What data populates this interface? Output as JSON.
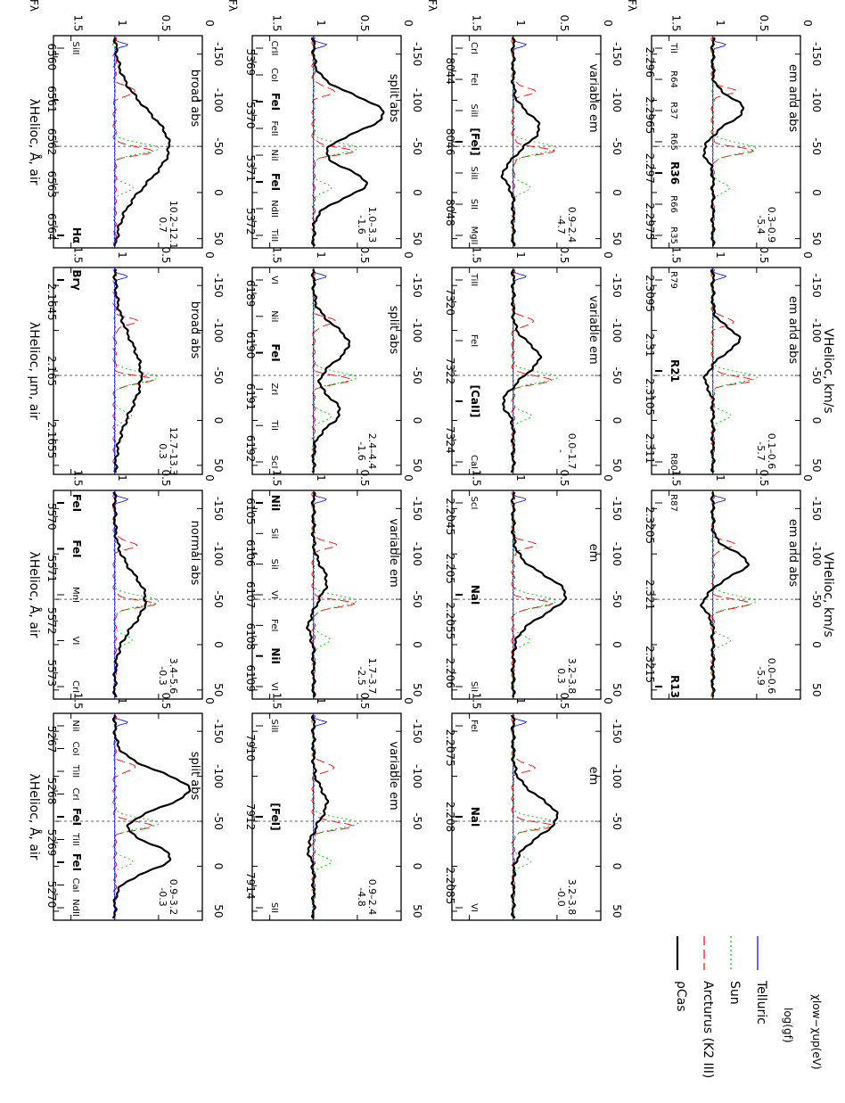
{
  "chart_data": [
    {
      "type": "line",
      "panel": 1,
      "ylabel": "Fλ",
      "top_label": "λHelioc, Å, air",
      "x_ticks": [
        "6560",
        "6561",
        "6562",
        "6563",
        "6564"
      ],
      "line_marks": [
        "SiII",
        "Hα"
      ],
      "ref_line": "Hα",
      "type_label": "broad abs",
      "note1": "0.7",
      "note2": "10.2–12.1",
      "depth": 0.62,
      "shape": "broad"
    },
    {
      "type": "line",
      "panel": 2,
      "ylabel": "Fλ",
      "top_label": "",
      "x_ticks": [
        "5369",
        "5370",
        "5371",
        "5372"
      ],
      "line_marks": [
        "CrII",
        "CoI",
        "FeI",
        "FeII",
        "NiI",
        "FeI",
        "NdII",
        "TiII"
      ],
      "ref_line": "FeI",
      "type_label": "split abs",
      "note1": "-1.6",
      "note2": "1.0–3.3",
      "depth": 0.8,
      "shape": "split"
    },
    {
      "type": "line",
      "panel": 3,
      "ylabel": "Fλ",
      "top_label": "",
      "x_ticks": [
        "8044",
        "8046",
        "8048"
      ],
      "line_marks": [
        "CrI",
        "FeI",
        "SiII",
        "[FeI]",
        "SiII",
        "SII",
        "MgII"
      ],
      "ref_line": "[FeI]",
      "type_label": "variable em",
      "note1": "-4.7",
      "note2": "0.9–2.4",
      "depth": 0.3,
      "shape": "variable"
    },
    {
      "type": "line",
      "panel": 4,
      "ylabel": "Fλ",
      "top_label": "",
      "x_ticks": [
        "2.296",
        "2.2965",
        "2.297",
        "2.2975"
      ],
      "line_marks": [
        "TiI",
        "R64",
        "R37",
        "R65",
        "R36",
        "R66",
        "R35"
      ],
      "ref_line": "R36",
      "type_label": "em and abs",
      "note1": "-5.4",
      "note2": "0.3–0.9",
      "depth": 0.35,
      "shape": "emabs"
    },
    {
      "type": "line",
      "panel": 5,
      "ylabel": "",
      "top_label": "λHelioc, μm, air",
      "x_ticks": [
        "2.1645",
        "2.165",
        "2.1655"
      ],
      "line_marks": [
        "Brγ"
      ],
      "ref_line": "Brγ",
      "type_label": "broad abs",
      "note1": "0.3",
      "note2": "12.7–13.3",
      "depth": 0.3,
      "shape": "broad"
    },
    {
      "type": "line",
      "panel": 6,
      "ylabel": "",
      "top_label": "",
      "x_ticks": [
        "6189",
        "6190",
        "6191",
        "6192"
      ],
      "line_marks": [
        "VI",
        "NiI",
        "FeI",
        "ZrI",
        "TiI",
        "ScI"
      ],
      "ref_line": "FeI",
      "type_label": "split abs",
      "note1": "-1.6",
      "note2": "2.4–4.4",
      "depth": 0.4,
      "shape": "split"
    },
    {
      "type": "line",
      "panel": 7,
      "ylabel": "",
      "top_label": "",
      "x_ticks": [
        "7320",
        "7322",
        "7324"
      ],
      "line_marks": [
        "TiII",
        "FeI",
        "[CaII]",
        "CaI"
      ],
      "ref_line": "[CaII]",
      "type_label": "variable em",
      "note1": "-",
      "note2": "0.0–1.7",
      "depth": 0.3,
      "shape": "variable"
    },
    {
      "type": "line",
      "panel": 8,
      "ylabel": "",
      "top_label": "",
      "x_ticks": [
        "2.3095",
        "2.31",
        "2.3105",
        "2.311"
      ],
      "line_marks": [
        "R79",
        "R21",
        "R80"
      ],
      "ref_line": "R21",
      "type_label": "em and abs",
      "note1": "-5.7",
      "note2": "0.1–0.6",
      "depth": 0.3,
      "shape": "emabs"
    },
    {
      "type": "line",
      "panel": 9,
      "ylabel": "",
      "top_label": "λHelioc, Å, air",
      "x_ticks": [
        "5570",
        "5571",
        "5572",
        "5573"
      ],
      "line_marks": [
        "FeI",
        "FeI",
        "MnI",
        "VI",
        "CrI"
      ],
      "ref_line": "FeI",
      "type_label": "normal abs",
      "note1": "-0.3",
      "note2": "3.4–5.6",
      "depth": 0.35,
      "shape": "normal"
    },
    {
      "type": "line",
      "panel": 10,
      "ylabel": "",
      "top_label": "",
      "x_ticks": [
        "6105",
        "6106",
        "6107",
        "6108",
        "6109"
      ],
      "line_marks": [
        "NiI",
        "SiI",
        "SiI",
        "VI",
        "FeI",
        "NiI",
        "VI"
      ],
      "ref_line": "NiI",
      "type_label": "variable em",
      "note1": "-2.5",
      "note2": "1.7–3.7",
      "depth": 0.15,
      "shape": "variable"
    },
    {
      "type": "line",
      "panel": 11,
      "ylabel": "",
      "top_label": "",
      "x_ticks": [
        "2.2045",
        "2.205",
        "2.2055",
        "2.206"
      ],
      "line_marks": [
        "ScI",
        "NaI",
        "SiI"
      ],
      "ref_line": "NaI",
      "type_label": "em",
      "note1": "0.3",
      "note2": "3.2–3.8",
      "depth": 0.6,
      "shape": "em"
    },
    {
      "type": "line",
      "panel": 12,
      "ylabel": "",
      "top_label": "",
      "x_ticks": [
        "2.3205",
        "2.321",
        "2.3215"
      ],
      "line_marks": [
        "R87",
        "R13"
      ],
      "ref_line": "R13",
      "type_label": "em and abs",
      "note1": "-5.9",
      "note2": "0.0–0.6",
      "depth": 0.4,
      "shape": "emabs"
    },
    {
      "type": "line",
      "panel": 13,
      "ylabel": "",
      "top_label": "λHelioc, Å, air",
      "x_ticks": [
        "5267",
        "5268",
        "5269",
        "5270"
      ],
      "line_marks": [
        "NiI",
        "CoI",
        "TiII",
        "CrI",
        "FeI",
        "TiII",
        "FeI",
        "CaI",
        "NdII"
      ],
      "ref_line": "FeI",
      "type_label": "split abs",
      "note1": "-0.3",
      "note2": "0.9–3.2",
      "depth": 0.85,
      "shape": "split"
    },
    {
      "type": "line",
      "panel": 14,
      "ylabel": "",
      "top_label": "",
      "x_ticks": [
        "7910",
        "7912",
        "7914"
      ],
      "line_marks": [
        "SiII",
        "[FeI]",
        "SII"
      ],
      "ref_line": "[FeI]",
      "type_label": "variable em",
      "note1": "-4.8",
      "note2": "0.9–2.4",
      "depth": 0.15,
      "shape": "variable"
    },
    {
      "type": "line",
      "panel": 15,
      "ylabel": "",
      "top_label": "",
      "x_ticks": [
        "2.2075",
        "2.208",
        "2.2085"
      ],
      "line_marks": [
        "FeI",
        "NaI",
        "VI"
      ],
      "ref_line": "NaI",
      "type_label": "em",
      "note1": "-0.0",
      "note2": "3.2–3.8",
      "depth": 0.5,
      "shape": "em"
    }
  ],
  "axes": {
    "x_values": [
      -150,
      -100,
      -50,
      0,
      50
    ],
    "x_labels": [
      "-150",
      "-100",
      "-50",
      "0",
      "50"
    ],
    "y_values": [
      0,
      0.5,
      1,
      1.5
    ],
    "y_labels": [
      "0",
      "0.5",
      "1",
      "1.5"
    ],
    "xlim": [
      -170,
      60
    ],
    "ylim": [
      0,
      1.7
    ],
    "x_axis_label": "VHelioc, km/s"
  },
  "legend": {
    "items": [
      {
        "label": "ρCas",
        "color": "#000000",
        "dash": "solid"
      },
      {
        "label": "Arcturus (K2 III)",
        "color": "#ff0000",
        "dash": "long"
      },
      {
        "label": "Sun",
        "color": "#00cc00",
        "dash": "dot"
      },
      {
        "label": "Telluric",
        "color": "#0000ff",
        "dash": "solid"
      }
    ],
    "note_a": "log(gf)",
    "note_b": "χlow−χup(eV)"
  }
}
